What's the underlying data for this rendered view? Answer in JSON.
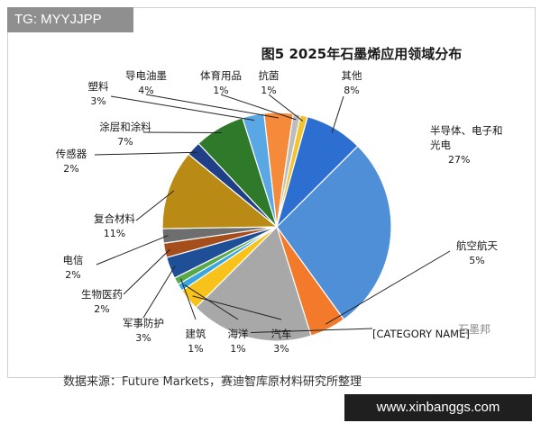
{
  "tag": "TG: MYYJJPP",
  "url_badge": "www.xinbanggs.com",
  "source": "数据来源：Future Markets，赛迪智库原材料研究所整理",
  "watermark": "石墨邦",
  "chart_data": {
    "type": "pie",
    "title": "图5  2025年石墨烯应用领域分布",
    "unit": "%",
    "start_category": "半导体、电子和光电",
    "slices": [
      {
        "label": "半导体、电子和光电",
        "value": 27,
        "value_label": "27%",
        "color": "#4f8fd8"
      },
      {
        "label": "航空航天",
        "value": 5,
        "value_label": "5%",
        "color": "#f47a2b"
      },
      {
        "label": "[CATEGORY NAME]",
        "value": 17,
        "value_label": "",
        "color": "#a8a8a8"
      },
      {
        "label": "汽车",
        "value": 3,
        "value_label": "3%",
        "color": "#f7c21a"
      },
      {
        "label": "海洋",
        "value": 1,
        "value_label": "1%",
        "color": "#39a6e0"
      },
      {
        "label": "建筑",
        "value": 1,
        "value_label": "1%",
        "color": "#59a84a"
      },
      {
        "label": "军事防护",
        "value": 3,
        "value_label": "3%",
        "color": "#1f4f96"
      },
      {
        "label": "生物医药",
        "value": 2,
        "value_label": "2%",
        "color": "#a64d1c"
      },
      {
        "label": "电信",
        "value": 2,
        "value_label": "2%",
        "color": "#6e6e6e"
      },
      {
        "label": "复合材料",
        "value": 11,
        "value_label": "11%",
        "color": "#b98b14"
      },
      {
        "label": "传感器",
        "value": 2,
        "value_label": "2%",
        "color": "#1f3f86"
      },
      {
        "label": "涂层和涂料",
        "value": 7,
        "value_label": "7%",
        "color": "#2f7a2a"
      },
      {
        "label": "塑料",
        "value": 3,
        "value_label": "3%",
        "color": "#5aa7e6"
      },
      {
        "label": "导电油墨",
        "value": 4,
        "value_label": "4%",
        "color": "#f58a3a"
      },
      {
        "label": "体育用品",
        "value": 1,
        "value_label": "1%",
        "color": "#bdbdbd"
      },
      {
        "label": "抗菌",
        "value": 1,
        "value_label": "1%",
        "color": "#f4c430"
      },
      {
        "label": "其他",
        "value": 8,
        "value_label": "8%",
        "color": "#2d6fd0"
      }
    ]
  }
}
